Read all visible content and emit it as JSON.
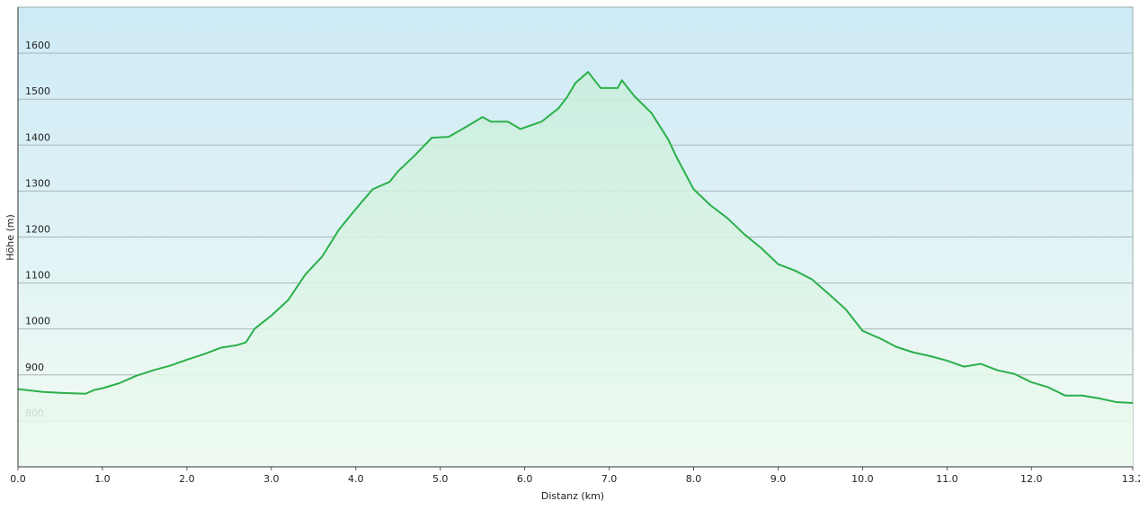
{
  "chart_data": {
    "type": "area",
    "x_label": "Distanz  (km)",
    "y_label": "Höhe (m)",
    "x": [
      0,
      0.3,
      0.5,
      0.8,
      0.9,
      1.0,
      1.2,
      1.4,
      1.6,
      1.8,
      2.0,
      2.2,
      2.4,
      2.6,
      2.7,
      2.8,
      3.0,
      3.2,
      3.4,
      3.6,
      3.8,
      4.0,
      4.2,
      4.4,
      4.5,
      4.7,
      4.9,
      5.1,
      5.3,
      5.5,
      5.6,
      5.8,
      5.95,
      6.2,
      6.4,
      6.5,
      6.6,
      6.75,
      6.9,
      7.1,
      7.15,
      7.3,
      7.5,
      7.7,
      7.8,
      8.0,
      8.2,
      8.4,
      8.6,
      8.8,
      9.0,
      9.2,
      9.4,
      9.6,
      9.8,
      10.0,
      10.2,
      10.4,
      10.6,
      10.8,
      11.0,
      11.2,
      11.4,
      11.6,
      11.8,
      12.0,
      12.2,
      12.4,
      12.6,
      12.8,
      13.0,
      13.2
    ],
    "values": [
      869,
      863,
      861,
      859,
      867,
      871,
      882,
      898,
      910,
      920,
      933,
      945,
      959,
      965,
      971,
      1000,
      1029,
      1063,
      1118,
      1157,
      1216,
      1261,
      1304,
      1320,
      1343,
      1378,
      1416,
      1418,
      1439,
      1461,
      1451,
      1451,
      1435,
      1451,
      1480,
      1504,
      1535,
      1559,
      1524,
      1524,
      1541,
      1506,
      1470,
      1412,
      1373,
      1304,
      1269,
      1241,
      1206,
      1176,
      1141,
      1127,
      1108,
      1076,
      1043,
      996,
      980,
      961,
      949,
      941,
      931,
      918,
      924,
      910,
      902,
      884,
      873,
      855,
      855,
      849,
      841,
      839
    ],
    "color": "#2bb04a",
    "xlim": [
      0,
      13.2
    ],
    "xticks": [
      {
        "value": 0,
        "label": "0.0"
      },
      {
        "value": 1,
        "label": "1.0"
      },
      {
        "value": 2,
        "label": "2.0"
      },
      {
        "value": 3,
        "label": "3.0"
      },
      {
        "value": 4,
        "label": "4.0"
      },
      {
        "value": 5,
        "label": "5.0"
      },
      {
        "value": 6,
        "label": "6.0"
      },
      {
        "value": 7,
        "label": "7.0"
      },
      {
        "value": 8,
        "label": "8.0"
      },
      {
        "value": 9,
        "label": "9.0"
      },
      {
        "value": 10,
        "label": "10.0"
      },
      {
        "value": 11,
        "label": "11.0"
      },
      {
        "value": 12,
        "label": "12.0"
      },
      13.2
    ],
    "ylim": [
      700,
      1700
    ],
    "yticks": [
      800,
      900,
      1000,
      1100,
      1200,
      1300,
      1400,
      1500,
      1600
    ],
    "grid": true
  }
}
